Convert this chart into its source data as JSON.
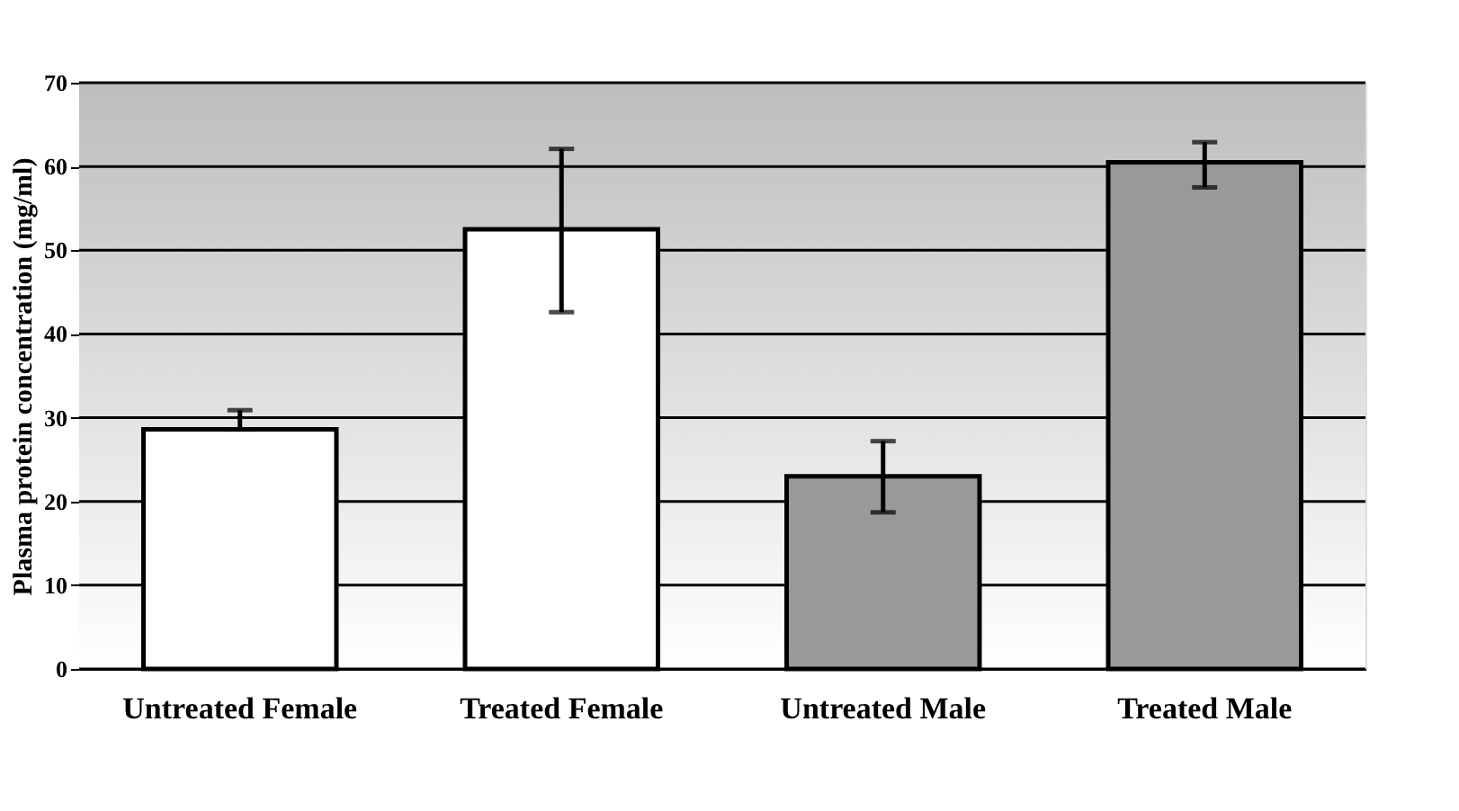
{
  "chart_data": {
    "type": "bar",
    "ylabel": "Plasma protein concentration (mg/ml)",
    "categories": [
      "Untreated Female",
      "Treated Female",
      "Untreated Male",
      "Treated Male"
    ],
    "values": [
      28.6,
      52.5,
      23.0,
      60.5
    ],
    "colors": [
      "#ffffff",
      "#ffffff",
      "#999999",
      "#999999"
    ],
    "errors": [
      [
        28.6,
        30.9
      ],
      [
        42.6,
        62.1
      ],
      [
        18.7,
        27.2
      ],
      [
        57.5,
        62.9
      ]
    ],
    "ylim": [
      0,
      70
    ],
    "yticks": [
      0,
      10,
      20,
      30,
      40,
      50,
      60,
      70
    ],
    "grid": "y"
  }
}
